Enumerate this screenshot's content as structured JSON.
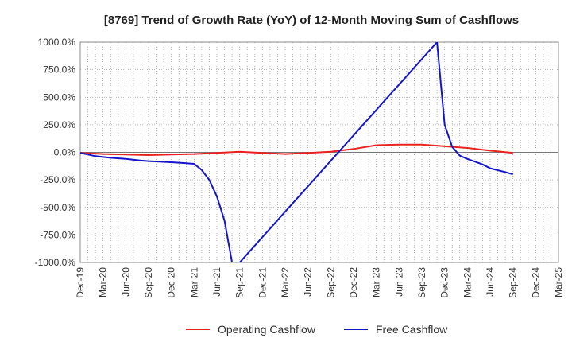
{
  "chart_data": {
    "type": "line",
    "title": "[8769]  Trend of Growth Rate (YoY) of 12-Month Moving Sum of Cashflows",
    "xlabel": "",
    "ylabel": "",
    "ylim": [
      -1000,
      1000
    ],
    "y_ticks": [
      1000,
      750,
      500,
      250,
      0,
      -250,
      -500,
      -750,
      -1000
    ],
    "y_tick_labels": [
      "1000.0%",
      "750.0%",
      "500.0%",
      "250.0%",
      "0.0%",
      "-250.0%",
      "-500.0%",
      "-750.0%",
      "-1000.0%"
    ],
    "x_tick_labels": [
      "Dec-19",
      "Mar-20",
      "Jun-20",
      "Sep-20",
      "Dec-20",
      "Mar-21",
      "Jun-21",
      "Sep-21",
      "Dec-21",
      "Mar-22",
      "Jun-22",
      "Sep-22",
      "Dec-22",
      "Mar-23",
      "Jun-23",
      "Sep-23",
      "Dec-23",
      "Mar-24",
      "Jun-24",
      "Sep-24",
      "Dec-24",
      "Mar-25"
    ],
    "grid": true,
    "legend_position": "bottom",
    "series": [
      {
        "name": "Operating Cashflow",
        "color": "#e8231f",
        "x": [
          "Dec-19",
          "Mar-20",
          "Jun-20",
          "Sep-20",
          "Dec-20",
          "Mar-21",
          "Jun-21",
          "Sep-21",
          "Dec-21",
          "Mar-22",
          "Jun-22",
          "Sep-22",
          "Dec-22",
          "Mar-23",
          "Jun-23",
          "Sep-23",
          "Dec-23",
          "Mar-24",
          "Jun-24",
          "Sep-24"
        ],
        "y": [
          -5,
          -15,
          -20,
          -25,
          -20,
          -15,
          -5,
          5,
          -5,
          -15,
          -5,
          5,
          30,
          65,
          70,
          70,
          55,
          40,
          15,
          -5
        ]
      },
      {
        "name": "Free Cashflow",
        "color": "#1414cc",
        "x": [
          "Dec-19",
          "Feb-20",
          "Apr-20",
          "Jun-20",
          "Aug-20",
          "Sep-20",
          "Dec-20",
          "Feb-21",
          "Mar-21",
          "Apr-21",
          "May-21",
          "Jun-21",
          "Jul-21",
          "Aug-21",
          "Sep-21",
          "Nov-23",
          "Dec-23",
          "Jan-24",
          "Feb-24",
          "Mar-24",
          "May-24",
          "Jun-24",
          "Aug-24",
          "Sep-24"
        ],
        "y": [
          -5,
          -35,
          -50,
          -60,
          -75,
          -80,
          -90,
          -100,
          -105,
          -160,
          -250,
          -400,
          -620,
          -1000,
          -1000,
          1000,
          250,
          50,
          -30,
          -60,
          -110,
          -145,
          -180,
          -200
        ]
      }
    ]
  }
}
